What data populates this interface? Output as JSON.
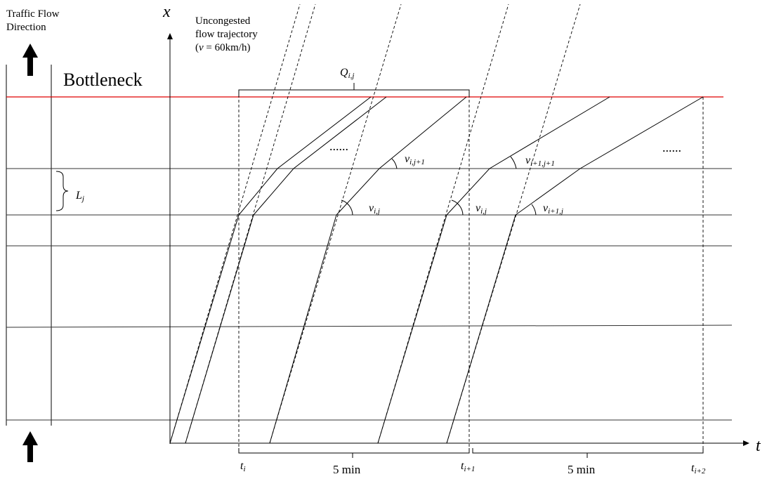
{
  "caption": {
    "direction": "Traffic Flow\nDirection",
    "bottleneck": "Bottleneck",
    "uncongested": "Uncongested\nflow trajectory",
    "uncongested_speed_pre": "(",
    "uncongested_speed_v": "v",
    "uncongested_speed_post": " = 60km/h)"
  },
  "axes": {
    "x_label": "x",
    "t_label": "t"
  },
  "labels": {
    "Q": "Q",
    "Q_sub": "i,j",
    "L": "L",
    "L_sub": "j",
    "dots_left": "......",
    "dots_right": "......",
    "v1": "v",
    "v1_sub": "i,j",
    "v2": "v",
    "v2_sub": "i,j",
    "v3": "v",
    "v3_sub": "i+1,j",
    "v4": "v",
    "v4_sub": "i,j+1",
    "v5": "v",
    "v5_sub": "i+1,j+1"
  },
  "time_ticks": {
    "t1": "t",
    "t1_sub": "i",
    "t2": "t",
    "t2_sub": "i+1",
    "t3": "t",
    "t3_sub": "i+2",
    "interval1": "5 min",
    "interval2": "5 min"
  },
  "colors": {
    "bottleneck_line": "#e00000",
    "lines": "#000000"
  }
}
